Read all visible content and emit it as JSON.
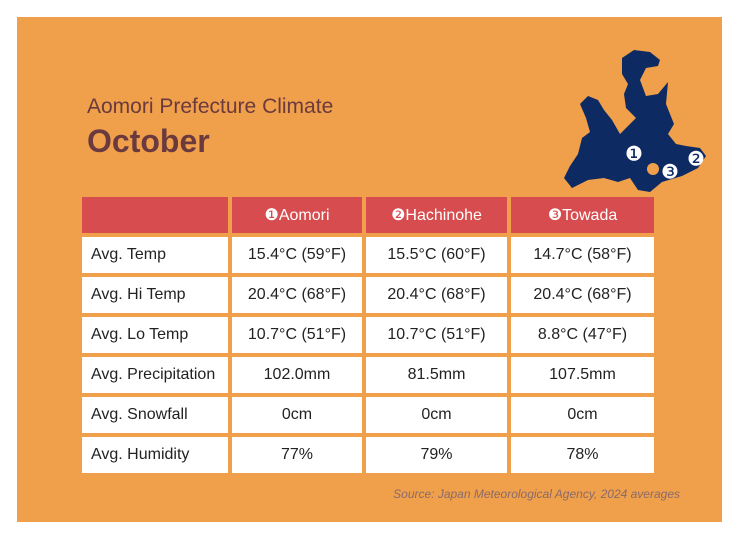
{
  "header": {
    "subtitle": "Aomori Prefecture Climate",
    "title": "October"
  },
  "map": {
    "markers": [
      "❶",
      "❷",
      "❸"
    ],
    "fill_color": "#0d2a63"
  },
  "table": {
    "columns": [
      {
        "label": ""
      },
      {
        "label": "❶Aomori"
      },
      {
        "label": "❷Hachinohe"
      },
      {
        "label": "❸Towada"
      }
    ],
    "rows": [
      {
        "label": "Avg. Temp",
        "values": [
          "15.4°C (59°F)",
          "15.5°C (60°F)",
          "14.7°C (58°F)"
        ]
      },
      {
        "label": "Avg. Hi Temp",
        "values": [
          "20.4°C (68°F)",
          "20.4°C (68°F)",
          "20.4°C (68°F)"
        ]
      },
      {
        "label": "Avg. Lo Temp",
        "values": [
          "10.7°C (51°F)",
          "10.7°C (51°F)",
          "8.8°C (47°F)"
        ]
      },
      {
        "label": "Avg. Precipitation",
        "values": [
          "102.0mm",
          "81.5mm",
          "107.5mm"
        ]
      },
      {
        "label": "Avg. Snowfall",
        "values": [
          "0cm",
          "0cm",
          "0cm"
        ]
      },
      {
        "label": "Avg. Humidity",
        "values": [
          "77%",
          "79%",
          "78%"
        ]
      }
    ]
  },
  "source": "Source: Japan Meteorological Agency, 2024 averages",
  "colors": {
    "background": "#f0a04b",
    "header_row": "#d74d4f",
    "title_text": "#6b3a3f"
  }
}
